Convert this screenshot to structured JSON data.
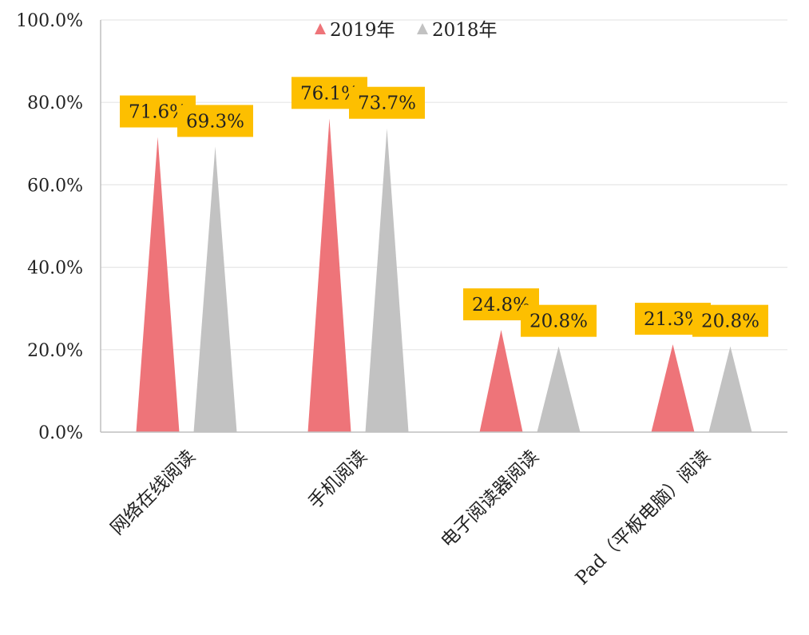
{
  "chart_data": {
    "type": "bar",
    "mark_shape": "triangle",
    "categories": [
      "网络在线阅读",
      "手机阅读",
      "电子阅读器阅读",
      "Pad（平板电脑）阅读"
    ],
    "series": [
      {
        "name": "2019年",
        "values": [
          71.6,
          76.1,
          24.8,
          21.3
        ],
        "labels": [
          "71.6%",
          "76.1%",
          "24.8%",
          "21.3%"
        ],
        "color": "#ee7479"
      },
      {
        "name": "2018年",
        "values": [
          69.3,
          73.7,
          20.8,
          20.8
        ],
        "labels": [
          "69.3%",
          "73.7%",
          "20.8%",
          "20.8%"
        ],
        "color": "#c2c2c2"
      }
    ],
    "y_ticks": [
      "0.0%",
      "20.0%",
      "40.0%",
      "60.0%",
      "80.0%",
      "100.0%"
    ],
    "ylim": [
      0,
      100
    ],
    "grid": true,
    "legend_position": "top",
    "data_label_bg": "#fdbf00",
    "axis_color": "#bfbfbf",
    "grid_color": "#e6e6e6"
  }
}
